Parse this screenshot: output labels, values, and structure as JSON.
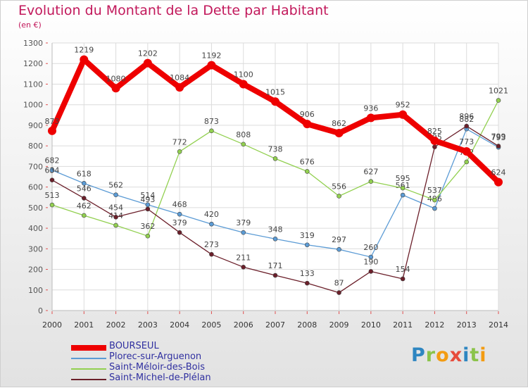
{
  "header": {
    "title": "Evolution du Montant de la Dette par Habitant",
    "unit": "(en €)"
  },
  "logo": {
    "text": "Proxiti",
    "letters": [
      {
        "ch": "P",
        "color": "#2e86c1"
      },
      {
        "ch": "r",
        "color": "#8bc34a"
      },
      {
        "ch": "o",
        "color": "#f39c12"
      },
      {
        "ch": "x",
        "color": "#e74c3c"
      },
      {
        "ch": "i",
        "color": "#2e86c1"
      },
      {
        "ch": "t",
        "color": "#8bc34a"
      },
      {
        "ch": "i",
        "color": "#f39c12"
      }
    ]
  },
  "chart_data": {
    "type": "line",
    "title": "Evolution du Montant de la Dette par Habitant",
    "ylabel": "(en €)",
    "xlabel": "",
    "ylim": [
      0,
      1300
    ],
    "yticks": [
      0,
      100,
      200,
      300,
      400,
      500,
      600,
      700,
      800,
      900,
      1000,
      1100,
      1200,
      1300
    ],
    "grid": true,
    "legend_position": "bottom-left",
    "x": [
      "2000",
      "2001",
      "2002",
      "2003",
      "2004",
      "2005",
      "2006",
      "2007",
      "2008",
      "2009",
      "2010",
      "2011",
      "2012",
      "2013",
      "2014"
    ],
    "series": [
      {
        "name": "BOURSEUL",
        "color": "#ee0000",
        "values": [
          873,
          1219,
          1080,
          1202,
          1084,
          1192,
          1100,
          1015,
          906,
          862,
          936,
          952,
          825,
          773,
          624
        ]
      },
      {
        "name": "Plorec-sur-Arguenon",
        "color": "#5b9bd5",
        "values": [
          682,
          618,
          562,
          514,
          468,
          420,
          379,
          348,
          319,
          297,
          260,
          561,
          496,
          882,
          793
        ]
      },
      {
        "name": "Saint-Méloir-des-Bois",
        "color": "#92d050",
        "values": [
          513,
          462,
          414,
          362,
          772,
          873,
          808,
          738,
          676,
          556,
          627,
          595,
          537,
          722,
          1021
        ]
      },
      {
        "name": "Saint-Michel-de-Plélan",
        "color": "#6b1f2a",
        "values": [
          634,
          546,
          454,
          493,
          379,
          273,
          211,
          171,
          133,
          87,
          190,
          154,
          795,
          896,
          799
        ]
      }
    ]
  }
}
